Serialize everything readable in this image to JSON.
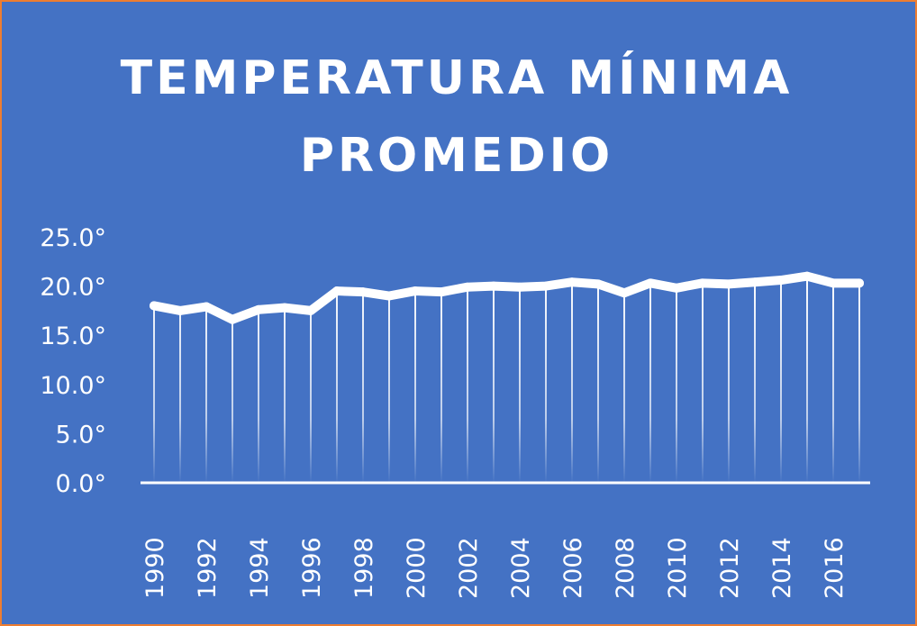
{
  "title_line1": "TEMPERATURA MÍNIMA",
  "title_line2": "PROMEDIO",
  "colors": {
    "background": "#4472C4",
    "border": "#ED7D31",
    "line": "#FFFFFF",
    "text": "#FFFFFF"
  },
  "chart_data": {
    "type": "line",
    "title": "TEMPERATURA MÍNIMA PROMEDIO",
    "xlabel": "",
    "ylabel": "",
    "ylim": [
      0,
      25
    ],
    "yticks": [
      "0.0°",
      "5.0°",
      "10.0°",
      "15.0°",
      "20.0°",
      "25.0°"
    ],
    "ytick_values": [
      0,
      5,
      10,
      15,
      20,
      25
    ],
    "xtick_labels": [
      "1990",
      "1992",
      "1994",
      "1996",
      "1998",
      "2000",
      "2002",
      "2004",
      "2006",
      "2008",
      "2010",
      "2012",
      "2014",
      "2016"
    ],
    "x": [
      1990,
      1991,
      1992,
      1993,
      1994,
      1995,
      1996,
      1997,
      1998,
      1999,
      2000,
      2001,
      2002,
      2003,
      2004,
      2005,
      2006,
      2007,
      2008,
      2009,
      2010,
      2011,
      2012,
      2013,
      2014,
      2015,
      2016,
      2017
    ],
    "values": [
      18.0,
      17.5,
      17.9,
      16.6,
      17.6,
      17.8,
      17.5,
      19.5,
      19.4,
      19.0,
      19.5,
      19.4,
      19.9,
      20.0,
      19.9,
      20.0,
      20.4,
      20.2,
      19.3,
      20.3,
      19.8,
      20.3,
      20.2,
      20.4,
      20.6,
      21.0,
      20.3,
      20.3
    ],
    "drop_lines": true,
    "grid": false,
    "legend": "none"
  }
}
